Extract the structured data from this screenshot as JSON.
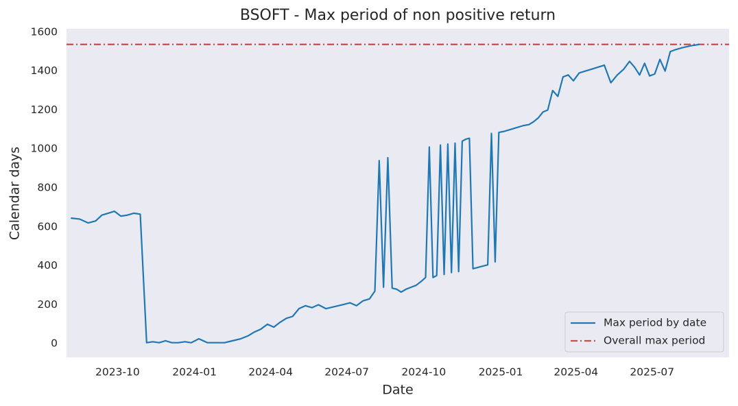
{
  "chart_data": {
    "type": "line",
    "title": "BSOFT - Max period of non positive return",
    "xlabel": "Date",
    "ylabel": "Calendar days",
    "x": [
      "2023-08",
      "2023-08",
      "2023-08",
      "2023-09",
      "2023-09",
      "2023-09",
      "2023-09",
      "2023-10",
      "2023-10",
      "2023-10",
      "2023-10",
      "2023-11",
      "2023-11",
      "2023-11",
      "2023-11",
      "2023-12",
      "2023-12",
      "2023-12",
      "2023-12",
      "2024-01",
      "2024-01",
      "2024-01",
      "2024-02",
      "2024-02",
      "2024-02",
      "2024-03",
      "2024-03",
      "2024-03",
      "2024-03",
      "2024-04",
      "2024-04",
      "2024-04",
      "2024-04",
      "2024-05",
      "2024-05",
      "2024-05",
      "2024-05",
      "2024-06",
      "2024-06",
      "2024-06",
      "2024-07",
      "2024-07",
      "2024-07",
      "2024-07",
      "2024-08",
      "2024-08",
      "2024-08",
      "2024-08",
      "2024-08",
      "2024-08",
      "2024-09",
      "2024-09",
      "2024-09",
      "2024-09",
      "2024-09",
      "2024-10",
      "2024-10",
      "2024-10",
      "2024-10",
      "2024-10",
      "2024-10",
      "2024-10",
      "2024-11",
      "2024-11",
      "2024-11",
      "2024-11",
      "2024-11",
      "2024-11",
      "2024-11",
      "2024-12",
      "2024-12",
      "2024-12",
      "2024-12",
      "2024-12",
      "2024-12",
      "2024-12",
      "2025-01",
      "2025-01",
      "2025-01",
      "2025-01",
      "2025-02",
      "2025-02",
      "2025-02",
      "2025-02",
      "2025-02",
      "2025-03",
      "2025-03",
      "2025-03",
      "2025-03",
      "2025-03",
      "2025-04",
      "2025-04",
      "2025-04",
      "2025-04",
      "2025-05",
      "2025-05",
      "2025-05",
      "2025-05",
      "2025-06",
      "2025-06",
      "2025-06",
      "2025-06",
      "2025-06",
      "2025-07",
      "2025-07",
      "2025-07",
      "2025-07",
      "2025-07",
      "2025-08",
      "2025-08",
      "2025-08"
    ],
    "series": [
      {
        "name": "Max period by date",
        "color": "#1f77b4",
        "values": [
          645,
          640,
          620,
          630,
          660,
          670,
          680,
          655,
          660,
          670,
          665,
          5,
          10,
          5,
          15,
          5,
          5,
          10,
          5,
          25,
          5,
          5,
          5,
          15,
          25,
          40,
          60,
          75,
          100,
          85,
          110,
          130,
          140,
          180,
          195,
          185,
          200,
          180,
          190,
          200,
          210,
          195,
          220,
          230,
          270,
          940,
          290,
          955,
          285,
          280,
          265,
          280,
          290,
          300,
          320,
          340,
          1010,
          340,
          350,
          1020,
          355,
          1025,
          365,
          1030,
          370,
          1040,
          1050,
          1055,
          385,
          390,
          395,
          400,
          405,
          1080,
          420,
          1085,
          1090,
          1100,
          1110,
          1120,
          1125,
          1140,
          1160,
          1190,
          1200,
          1300,
          1270,
          1370,
          1380,
          1350,
          1390,
          1400,
          1410,
          1420,
          1430,
          1340,
          1380,
          1410,
          1450,
          1420,
          1380,
          1440,
          1375,
          1385,
          1460,
          1400,
          1500,
          1510,
          1520,
          1530,
          1537
        ]
      }
    ],
    "hline": {
      "name": "Overall max period",
      "value": 1537,
      "color": "#c44e52"
    },
    "xlim": [
      "2023-08",
      "2025-10"
    ],
    "xticks": [
      "2023-10",
      "2024-01",
      "2024-04",
      "2024-07",
      "2024-10",
      "2025-01",
      "2025-04",
      "2025-07"
    ],
    "ylim": [
      -70,
      1617
    ],
    "yticks": [
      0,
      200,
      400,
      600,
      800,
      1000,
      1200,
      1400,
      1600
    ],
    "grid": false,
    "legend_loc": "lower right"
  }
}
